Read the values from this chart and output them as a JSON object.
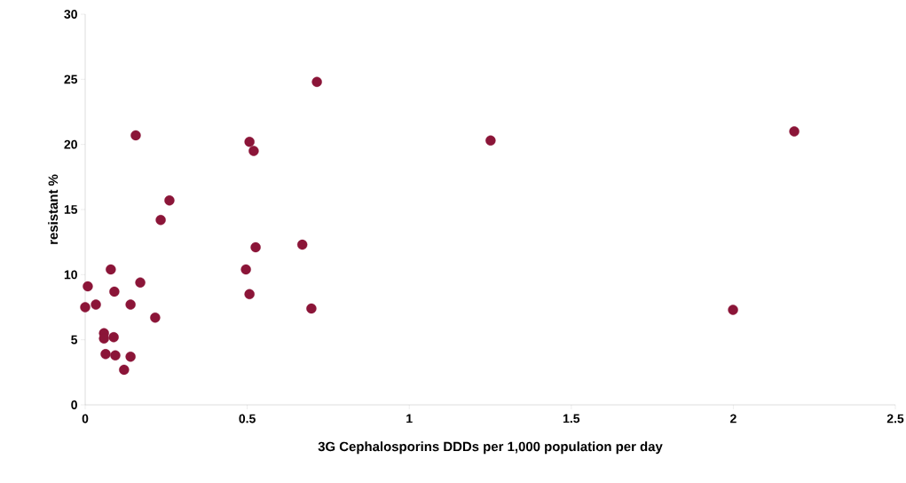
{
  "chart_data": {
    "type": "scatter",
    "xlabel": "3G Cephalosporins DDDs per 1,000 population per day",
    "ylabel": "resistant %",
    "color": "#8b1538",
    "marker": "circle",
    "grid": false,
    "x": [
      0,
      0.008,
      0.033,
      0.058,
      0.058,
      0.063,
      0.079,
      0.088,
      0.093,
      0.09,
      0.12,
      0.14,
      0.14,
      0.156,
      0.17,
      0.216,
      0.233,
      0.26,
      0.496,
      0.507,
      0.507,
      0.52,
      0.526,
      0.67,
      0.698,
      0.715,
      1.251,
      1.999,
      2.188
    ],
    "values": [
      7.5,
      9.1,
      7.7,
      5.5,
      5.1,
      3.9,
      10.4,
      5.2,
      3.8,
      8.7,
      2.7,
      7.7,
      3.7,
      20.7,
      9.4,
      6.7,
      14.2,
      15.7,
      10.4,
      8.5,
      20.2,
      19.5,
      12.1,
      12.3,
      7.4,
      24.8,
      20.3,
      7.3,
      21.0
    ],
    "xlim": [
      0,
      2.5
    ],
    "ylim": [
      0,
      30
    ],
    "xticks": [
      0,
      0.5,
      1,
      1.5,
      2,
      2.5
    ],
    "yticks": [
      0,
      5,
      10,
      15,
      20,
      25,
      30
    ]
  }
}
